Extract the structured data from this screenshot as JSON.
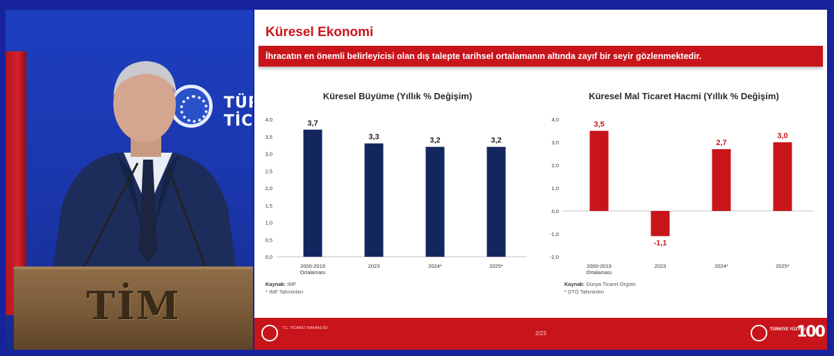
{
  "speaker_panel": {
    "logo_line1": "TÜRK",
    "logo_line2": "TİCA",
    "podium_text": "TİM"
  },
  "slide": {
    "title": "Küresel Ekonomi",
    "banner": "İhracatın en önemli belirleyicisi olan dış talepte tarihsel ortalamanın altında zayıf bir seyir gözlenmektedir.",
    "footer": {
      "ministry": "T.C. TİCARET BAKANLIĞI",
      "page": "2/23",
      "century": "TÜRKİYE YÜZYILI",
      "hundred": "100"
    }
  },
  "colors": {
    "navy_bar": "#14265e",
    "red_bar": "#c8151b",
    "accent": "#c8151b"
  },
  "chart_data": [
    {
      "type": "bar",
      "title": "Küresel Büyüme (Yıllık % Değişim)",
      "categories": [
        "2000-2019 Ortalaması",
        "2023",
        "2024*",
        "2025*"
      ],
      "category_lines": [
        [
          "2000-2019",
          "Ortalaması"
        ],
        [
          "2023"
        ],
        [
          "2024*"
        ],
        [
          "2025*"
        ]
      ],
      "values": [
        3.7,
        3.3,
        3.2,
        3.2
      ],
      "value_labels": [
        "3,7",
        "3,3",
        "3,2",
        "3,2"
      ],
      "ylim": [
        0,
        4.0
      ],
      "yticks": [
        "0,0",
        "0,5",
        "1,0",
        "1,5",
        "2,0",
        "2,5",
        "3,0",
        "3,5",
        "4,0"
      ],
      "ytick_values": [
        0,
        0.5,
        1.0,
        1.5,
        2.0,
        2.5,
        3.0,
        3.5,
        4.0
      ],
      "color": "#14265e",
      "source_label": "Kaynak:",
      "source": "IMF",
      "note": "* IMF Tahminleri"
    },
    {
      "type": "bar",
      "title": "Küresel Mal Ticaret Hacmi (Yıllık % Değişim)",
      "categories": [
        "2000-2019 Ortalaması",
        "2023",
        "2024*",
        "2025*"
      ],
      "category_lines": [
        [
          "2000-2019",
          "Ortalaması"
        ],
        [
          "2023"
        ],
        [
          "2024*"
        ],
        [
          "2025*"
        ]
      ],
      "values": [
        3.5,
        -1.1,
        2.7,
        3.0
      ],
      "value_labels": [
        "3,5",
        "-1,1",
        "2,7",
        "3,0"
      ],
      "ylim": [
        -2.0,
        4.0
      ],
      "yticks": [
        "-2,0",
        "-1,0",
        "0,0",
        "1,0",
        "2,0",
        "3,0",
        "4,0"
      ],
      "ytick_values": [
        -2.0,
        -1.0,
        0.0,
        1.0,
        2.0,
        3.0,
        4.0
      ],
      "color": "#c8151b",
      "source_label": "Kaynak:",
      "source": "Dünya Ticaret Örgütü",
      "note": "* DTÖ Tahminleri"
    }
  ]
}
